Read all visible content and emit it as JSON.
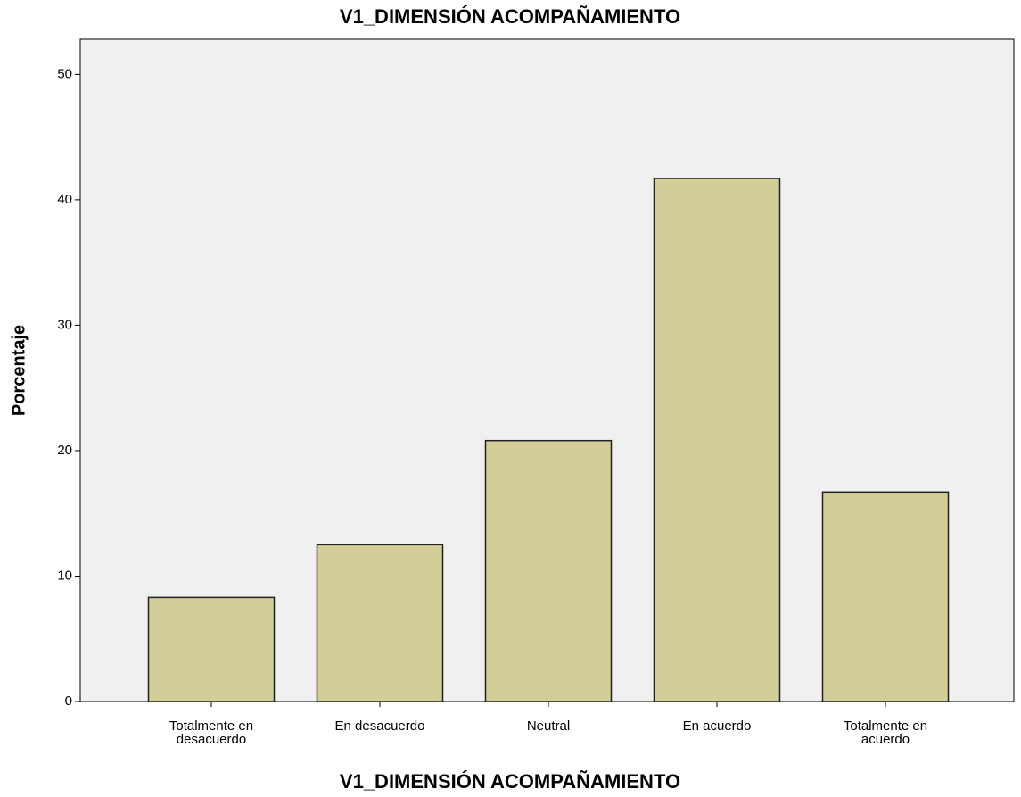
{
  "chart_data": {
    "type": "bar",
    "title": "V1_DIMENSIÓN ACOMPAÑAMIENTO",
    "x_label": "V1_DIMENSIÓN ACOMPAÑAMIENTO",
    "y_label": "Porcentaje",
    "categories": [
      "Totalmente en desacuerdo",
      "En desacuerdo",
      "Neutral",
      "En acuerdo",
      "Totalmente en acuerdo"
    ],
    "values": [
      8.3,
      12.5,
      20.8,
      41.7,
      16.7
    ],
    "color": "#d3ce97",
    "ylim": [
      0,
      52.8
    ],
    "yticks": [
      0,
      10,
      20,
      30,
      40,
      50
    ],
    "grid": false
  }
}
